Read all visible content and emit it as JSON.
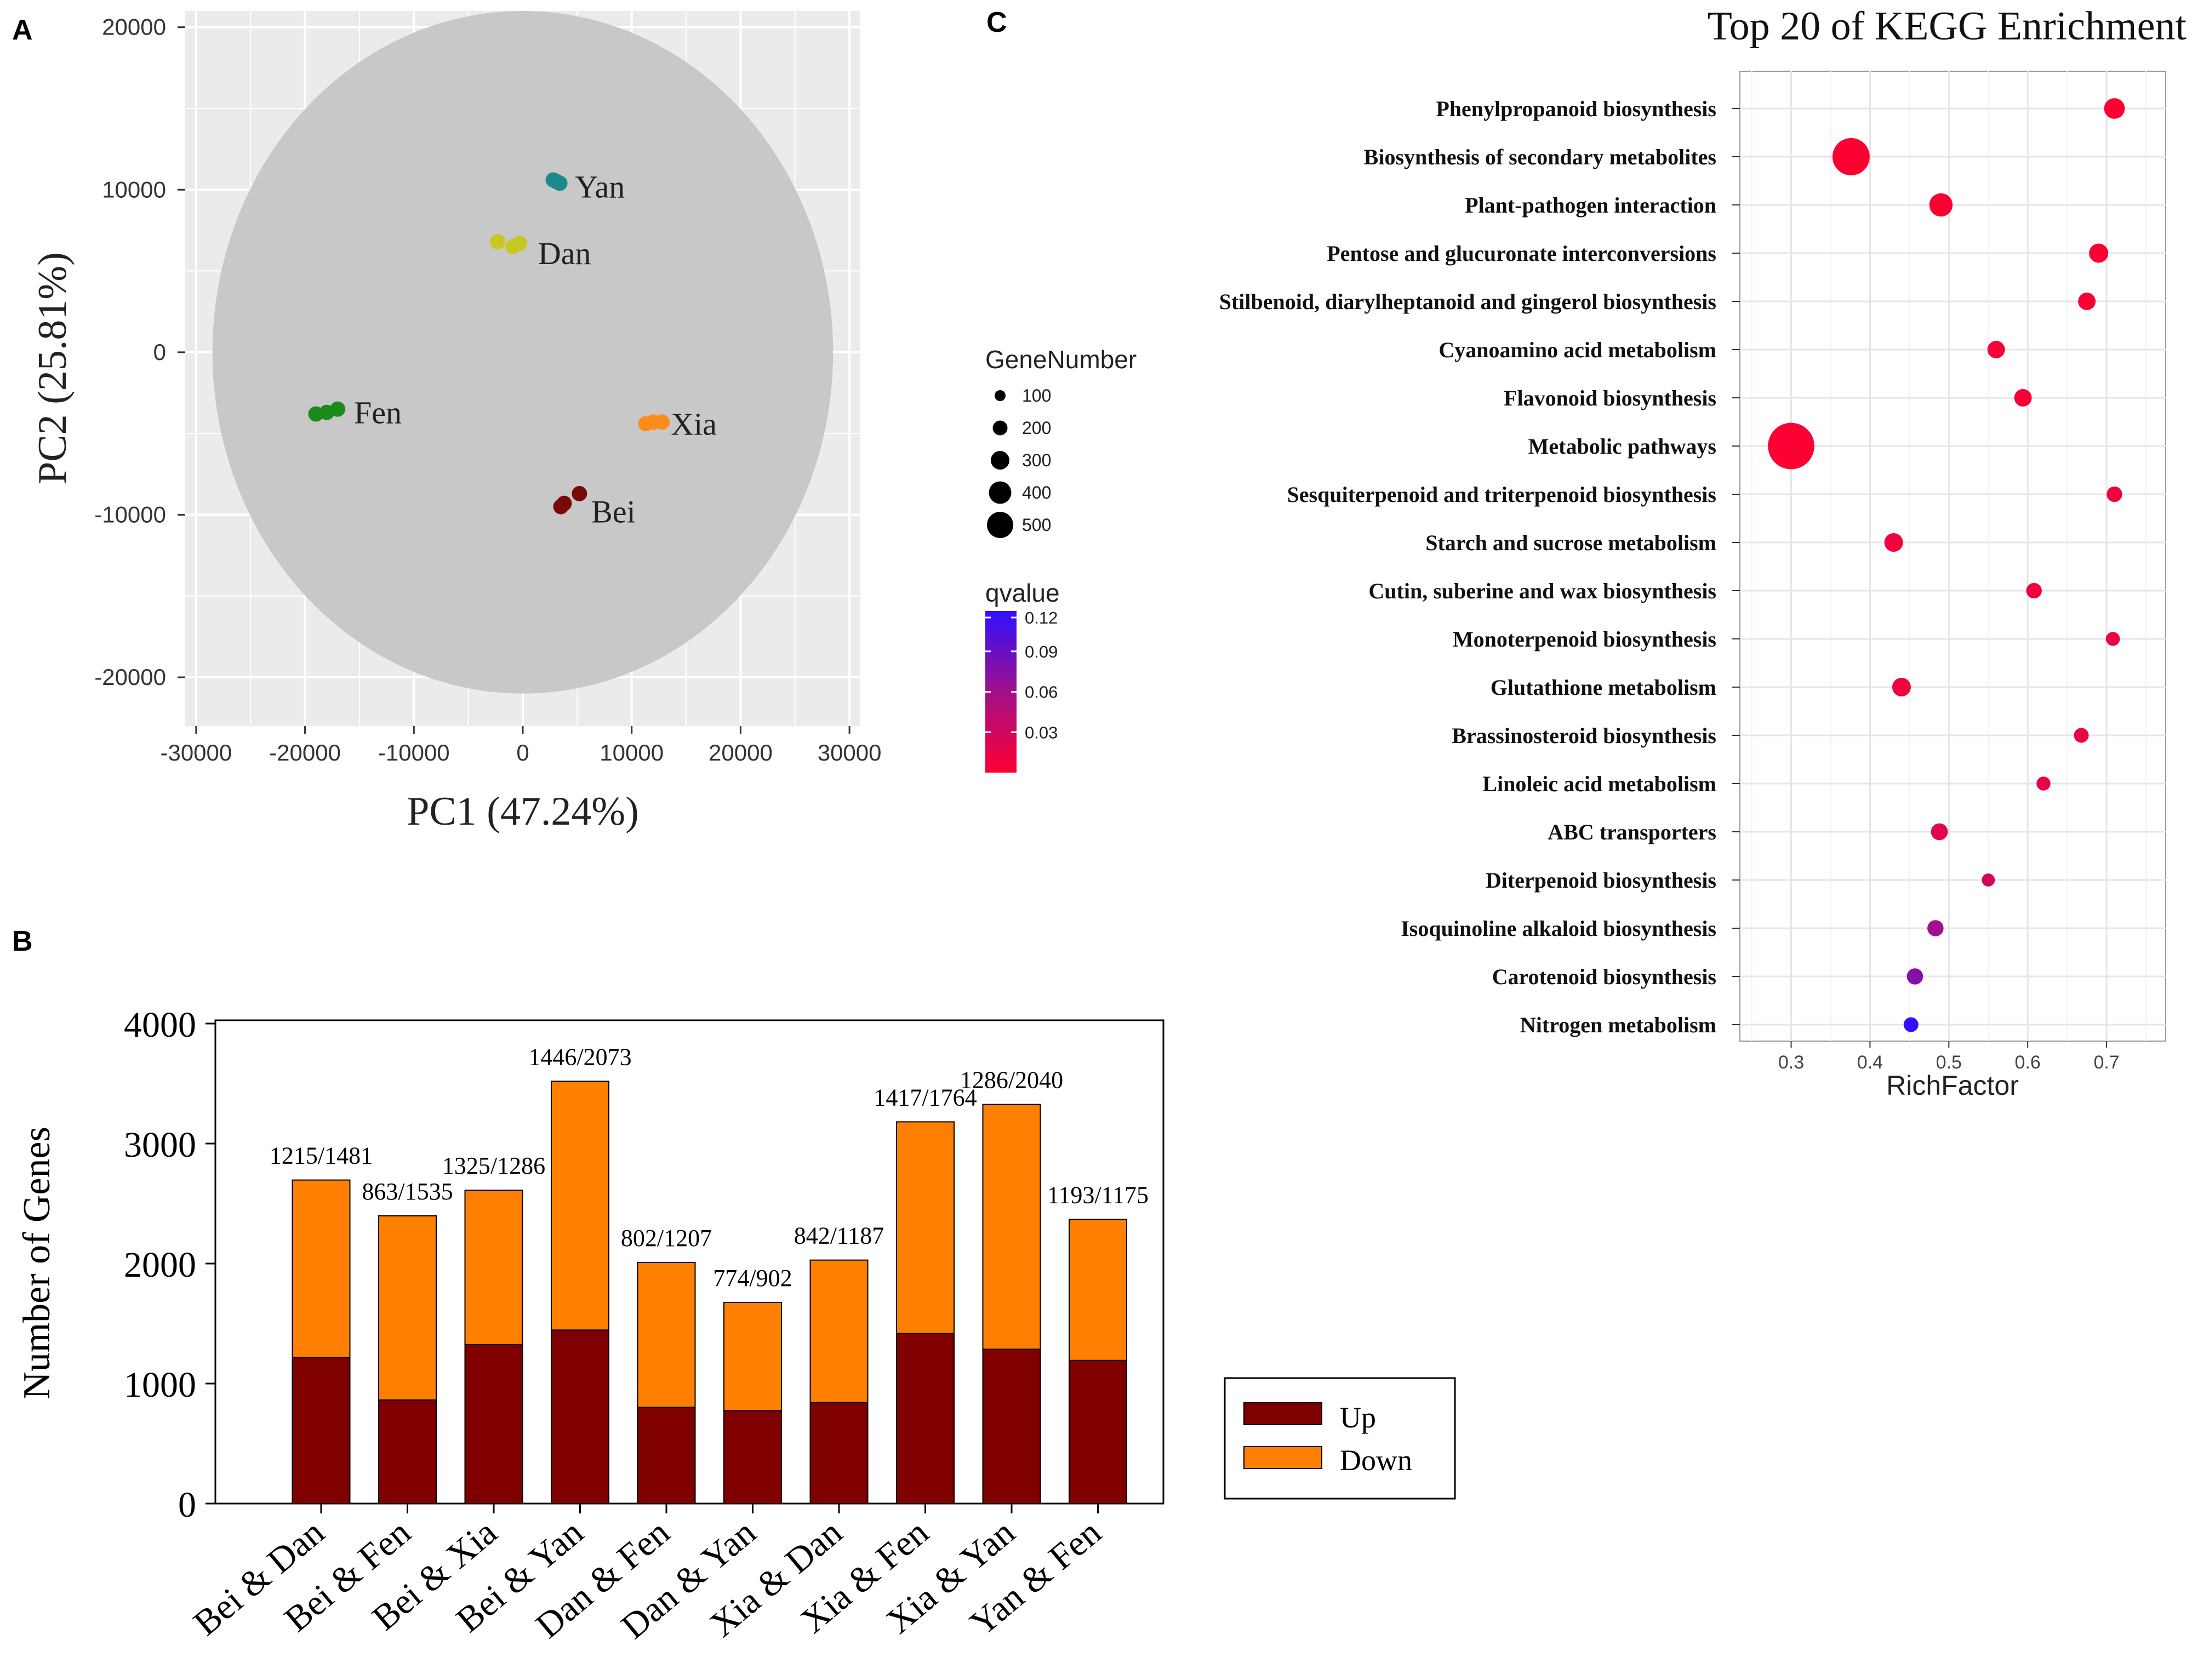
{
  "panels": {
    "a": "A",
    "b": "B",
    "c": "C"
  },
  "colors": {
    "pca_panel_bg": "#ebebeb",
    "pca_ellipse": "#c8c8c8",
    "up": "#800000",
    "down": "#ff8000",
    "q_low": "#ff0030",
    "q_high": "#3010ff"
  },
  "chart_data": [
    {
      "type": "scatter",
      "title": "",
      "xlabel": "PC1 (47.24%)",
      "ylabel": "PC2 (25.81%)",
      "xlim": [
        -31000,
        31000
      ],
      "ylim": [
        -23000,
        21000
      ],
      "xticks": [
        -30000,
        -20000,
        -10000,
        0,
        10000,
        20000,
        30000
      ],
      "xtick_labels": [
        "-30000",
        "-20000",
        "-10000",
        "0",
        "10000",
        "20000",
        "30000"
      ],
      "yticks": [
        -20000,
        -10000,
        0,
        10000,
        20000
      ],
      "ytick_labels": [
        "-20000",
        "-10000",
        "0",
        "10000",
        "20000"
      ],
      "ellipse": {
        "cx": 0,
        "cy": 0,
        "rx": 28500,
        "ry": 21000
      },
      "groups": [
        {
          "name": "Yan",
          "color": "#1a8a8a",
          "points": [
            [
              2800,
              10600
            ],
            [
              3100,
              10500
            ],
            [
              3400,
              10400
            ]
          ],
          "label_at": [
            4800,
            10200
          ]
        },
        {
          "name": "Dan",
          "color": "#c8c820",
          "points": [
            [
              -2300,
              6800
            ],
            [
              -900,
              6500
            ],
            [
              -300,
              6700
            ]
          ],
          "label_at": [
            1400,
            6100
          ]
        },
        {
          "name": "Fen",
          "color": "#1a8a1a",
          "points": [
            [
              -19000,
              -3800
            ],
            [
              -18000,
              -3700
            ],
            [
              -17000,
              -3500
            ]
          ],
          "label_at": [
            -15500,
            -3700
          ]
        },
        {
          "name": "Xia",
          "color": "#ff8c1a",
          "points": [
            [
              11300,
              -4400
            ],
            [
              12000,
              -4300
            ],
            [
              12800,
              -4300
            ]
          ],
          "label_at": [
            13600,
            -4400
          ]
        },
        {
          "name": "Bei",
          "color": "#7a0a0a",
          "points": [
            [
              3500,
              -9500
            ],
            [
              3800,
              -9300
            ],
            [
              5200,
              -8700
            ]
          ],
          "label_at": [
            6300,
            -9800
          ]
        }
      ]
    },
    {
      "type": "bar",
      "stacked": true,
      "title": "",
      "xlabel": "",
      "ylabel": "Number of Genes",
      "ylim": [
        0,
        4000
      ],
      "yticks": [
        0,
        1000,
        2000,
        3000,
        4000
      ],
      "ytick_labels": [
        "0",
        "1000",
        "2000",
        "3000",
        "4000"
      ],
      "categories": [
        "Bei & Dan",
        "Bei & Fen",
        "Bei & Xia",
        "Bei & Yan",
        "Dan & Fen",
        "Dan & Yan",
        "Xia & Dan",
        "Xia & Fen",
        "Xia & Yan",
        "Yan & Fen"
      ],
      "series": [
        {
          "name": "Up",
          "values": [
            1215,
            863,
            1325,
            1446,
            802,
            774,
            842,
            1417,
            1286,
            1193
          ]
        },
        {
          "name": "Down",
          "values": [
            1481,
            1535,
            1286,
            2073,
            1207,
            902,
            1187,
            1764,
            2040,
            1175
          ]
        }
      ],
      "data_labels": [
        "1215/1481",
        "863/1535",
        "1325/1286",
        "1446/2073",
        "802/1207",
        "774/902",
        "842/1187",
        "1417/1764",
        "1286/2040",
        "1193/1175"
      ],
      "legend": [
        "Up",
        "Down"
      ]
    },
    {
      "type": "scatter",
      "title": "Top 20 of KEGG Enrichment",
      "xlabel": "RichFactor",
      "ylabel": "",
      "xlim": [
        0.235,
        0.775
      ],
      "xticks": [
        0.3,
        0.4,
        0.5,
        0.6,
        0.7
      ],
      "xtick_labels": [
        "0.3",
        "0.4",
        "0.5",
        "0.6",
        "0.7"
      ],
      "pathways": [
        "Phenylpropanoid biosynthesis",
        "Biosynthesis of secondary metabolites",
        "Plant-pathogen interaction",
        "Pentose and glucuronate interconversions",
        "Stilbenoid, diarylheptanoid and gingerol biosynthesis",
        "Cyanoamino acid metabolism",
        "Flavonoid biosynthesis",
        "Metabolic pathways",
        "Sesquiterpenoid and triterpenoid biosynthesis",
        "Starch and sucrose metabolism",
        "Cutin, suberine and wax biosynthesis",
        "Monoterpenoid biosynthesis",
        "Glutathione metabolism",
        "Brassinosteroid biosynthesis",
        "Linoleic acid metabolism",
        "ABC transporters",
        "Diterpenoid biosynthesis",
        "Isoquinoline alkaloid biosynthesis",
        "Carotenoid biosynthesis",
        "Nitrogen metabolism"
      ],
      "rich_factor": [
        0.71,
        0.376,
        0.49,
        0.69,
        0.675,
        0.56,
        0.594,
        0.3,
        0.71,
        0.43,
        0.608,
        0.708,
        0.44,
        0.668,
        0.62,
        0.488,
        0.55,
        0.483,
        0.457,
        0.452
      ],
      "gene_number": [
        80,
        350,
        110,
        65,
        50,
        50,
        50,
        580,
        35,
        60,
        35,
        25,
        60,
        30,
        25,
        45,
        20,
        40,
        40,
        30
      ],
      "qvalue": [
        0.001,
        0.001,
        0.001,
        0.002,
        0.003,
        0.004,
        0.005,
        0.002,
        0.008,
        0.008,
        0.01,
        0.012,
        0.01,
        0.015,
        0.016,
        0.018,
        0.03,
        0.06,
        0.075,
        0.12
      ],
      "size_legend": {
        "title": "GeneNumber",
        "values": [
          100,
          200,
          300,
          400,
          500
        ],
        "labels": [
          "100",
          "200",
          "300",
          "400",
          "500"
        ]
      },
      "color_legend": {
        "title": "qvalue",
        "range": [
          0.0,
          0.12
        ],
        "ticks": [
          0.03,
          0.06,
          0.09,
          0.12
        ],
        "tick_labels": [
          "0.03",
          "0.06",
          "0.09",
          "0.12"
        ]
      }
    }
  ]
}
